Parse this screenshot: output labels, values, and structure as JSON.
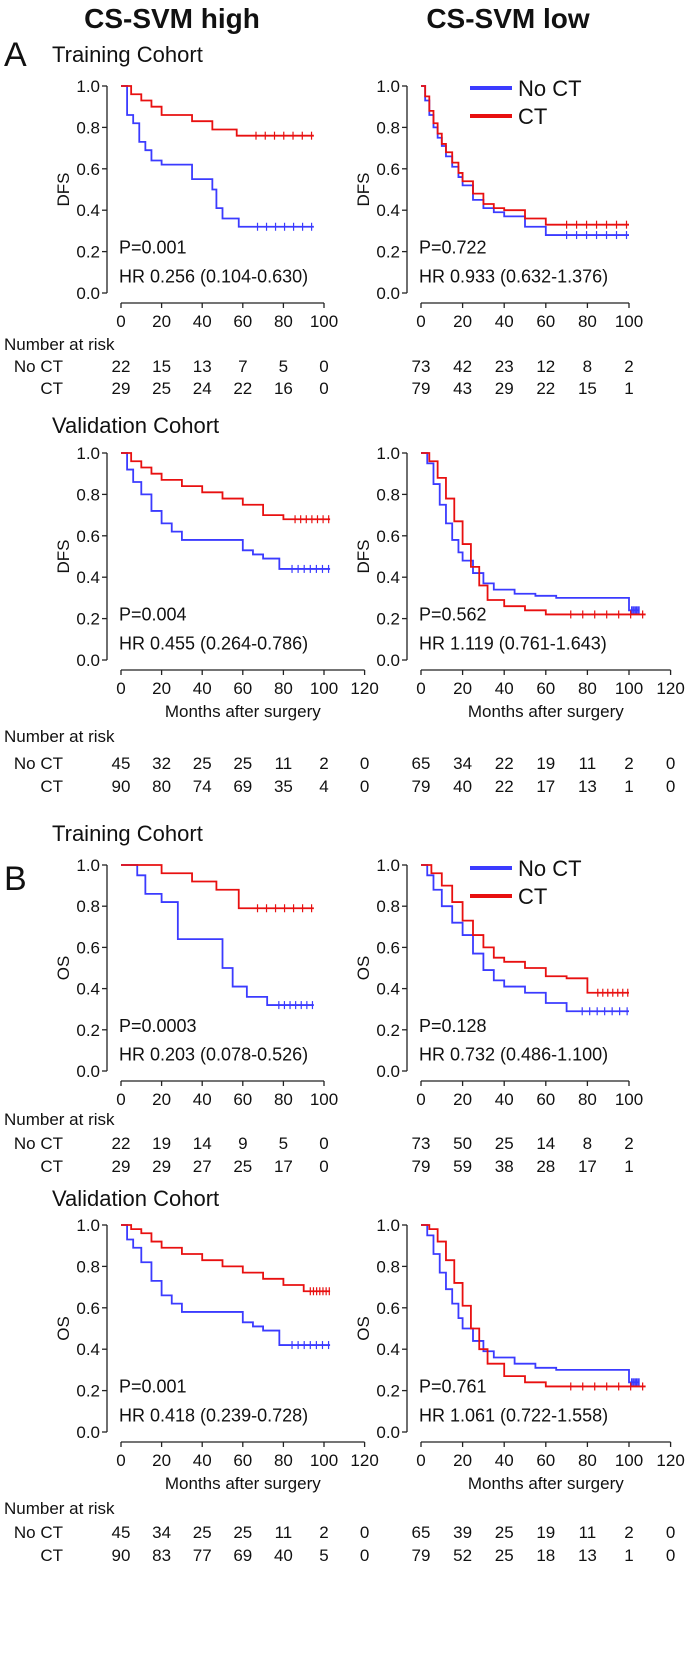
{
  "figure": {
    "headers": [
      "CS-SVM high",
      "CS-SVM low"
    ],
    "risk_header": "Number at risk",
    "legend": [
      {
        "label": "No CT",
        "color": "#3b3bff"
      },
      {
        "label": "CT",
        "color": "#e81010"
      }
    ],
    "colors": {
      "no_ct": "#3b3bff",
      "ct": "#e81010"
    }
  },
  "chart_data": [
    {
      "type": "line",
      "panel": "A",
      "cohort_title": "Training Cohort",
      "column": "CS-SVM high",
      "ylabel": "DFS",
      "xlabel": "",
      "xlim": [
        0,
        100
      ],
      "ylim": [
        0,
        1
      ],
      "xticks": [
        0,
        20,
        40,
        60,
        80,
        100
      ],
      "yticks": [
        0.0,
        0.2,
        0.4,
        0.6,
        0.8,
        1.0
      ],
      "p_value": "P=0.001",
      "hr": "HR 0.256 (0.104-0.630)",
      "series": [
        {
          "name": "No CT",
          "x": [
            0,
            3,
            6,
            9,
            12,
            15,
            20,
            35,
            45,
            47,
            50,
            58,
            95
          ],
          "y": [
            1.0,
            0.86,
            0.82,
            0.73,
            0.69,
            0.64,
            0.62,
            0.55,
            0.5,
            0.41,
            0.36,
            0.32,
            0.32
          ]
        },
        {
          "name": "CT",
          "x": [
            0,
            5,
            10,
            15,
            20,
            35,
            45,
            57,
            95
          ],
          "y": [
            1.0,
            0.96,
            0.93,
            0.9,
            0.86,
            0.83,
            0.79,
            0.76,
            0.76
          ]
        }
      ],
      "risk": {
        "times": [
          0,
          20,
          40,
          60,
          80,
          100
        ],
        "no_ct": [
          "22",
          "15",
          "13",
          "7",
          "5",
          "0"
        ],
        "ct": [
          "29",
          "25",
          "24",
          "22",
          "16",
          "0"
        ]
      }
    },
    {
      "type": "line",
      "panel": "A",
      "cohort_title": "",
      "column": "CS-SVM low",
      "ylabel": "DFS",
      "xlabel": "",
      "xlim": [
        0,
        100
      ],
      "ylim": [
        0,
        1
      ],
      "xticks": [
        0,
        20,
        40,
        60,
        80,
        100
      ],
      "yticks": [
        0.0,
        0.2,
        0.4,
        0.6,
        0.8,
        1.0
      ],
      "p_value": "P=0.722",
      "hr": "HR 0.933 (0.632-1.376)",
      "series": [
        {
          "name": "No CT",
          "x": [
            0,
            2,
            4,
            6,
            8,
            10,
            12,
            15,
            18,
            20,
            25,
            30,
            35,
            40,
            50,
            60,
            100
          ],
          "y": [
            1.0,
            0.93,
            0.86,
            0.8,
            0.75,
            0.71,
            0.66,
            0.61,
            0.56,
            0.52,
            0.45,
            0.41,
            0.39,
            0.37,
            0.32,
            0.28,
            0.28
          ]
        },
        {
          "name": "CT",
          "x": [
            0,
            2,
            4,
            6,
            8,
            10,
            12,
            15,
            18,
            20,
            25,
            30,
            35,
            40,
            50,
            60,
            100
          ],
          "y": [
            1.0,
            0.95,
            0.88,
            0.82,
            0.77,
            0.72,
            0.68,
            0.63,
            0.58,
            0.54,
            0.48,
            0.43,
            0.41,
            0.4,
            0.36,
            0.33,
            0.33
          ]
        }
      ],
      "risk": {
        "times": [
          0,
          20,
          40,
          60,
          80,
          100
        ],
        "no_ct": [
          "73",
          "42",
          "23",
          "12",
          "8",
          "2"
        ],
        "ct": [
          "79",
          "43",
          "29",
          "22",
          "15",
          "1"
        ]
      }
    },
    {
      "type": "line",
      "panel": "A",
      "cohort_title": "Validation Cohort",
      "column": "CS-SVM high",
      "ylabel": "DFS",
      "xlabel": "Months after surgery",
      "xlim": [
        0,
        120
      ],
      "ylim": [
        0,
        1
      ],
      "xticks": [
        0,
        20,
        40,
        60,
        80,
        100,
        120
      ],
      "yticks": [
        0.0,
        0.2,
        0.4,
        0.6,
        0.8,
        1.0
      ],
      "p_value": "P=0.004",
      "hr": "HR 0.455 (0.264-0.786)",
      "series": [
        {
          "name": "No CT",
          "x": [
            0,
            3,
            6,
            10,
            15,
            20,
            25,
            30,
            50,
            60,
            65,
            70,
            78,
            103
          ],
          "y": [
            1.0,
            0.92,
            0.86,
            0.8,
            0.72,
            0.66,
            0.62,
            0.58,
            0.58,
            0.53,
            0.51,
            0.49,
            0.44,
            0.44
          ]
        },
        {
          "name": "CT",
          "x": [
            0,
            5,
            10,
            15,
            20,
            30,
            40,
            50,
            60,
            70,
            80,
            103
          ],
          "y": [
            1.0,
            0.96,
            0.93,
            0.9,
            0.87,
            0.84,
            0.81,
            0.78,
            0.75,
            0.7,
            0.68,
            0.68
          ]
        }
      ],
      "risk": {
        "times": [
          0,
          20,
          40,
          60,
          80,
          100,
          120
        ],
        "no_ct": [
          "45",
          "32",
          "25",
          "25",
          "11",
          "2",
          "0"
        ],
        "ct": [
          "90",
          "80",
          "74",
          "69",
          "35",
          "4",
          "0"
        ]
      }
    },
    {
      "type": "line",
      "panel": "A",
      "cohort_title": "",
      "column": "CS-SVM low",
      "ylabel": "DFS",
      "xlabel": "Months after surgery",
      "xlim": [
        0,
        120
      ],
      "ylim": [
        0,
        1
      ],
      "xticks": [
        0,
        20,
        40,
        60,
        80,
        100,
        120
      ],
      "yticks": [
        0.0,
        0.2,
        0.4,
        0.6,
        0.8,
        1.0
      ],
      "p_value": "P=0.562",
      "hr": "HR 1.119 (0.761-1.643)",
      "series": [
        {
          "name": "No CT",
          "x": [
            0,
            3,
            6,
            9,
            12,
            15,
            18,
            20,
            25,
            30,
            35,
            45,
            55,
            65,
            95,
            100,
            105
          ],
          "y": [
            1.0,
            0.95,
            0.85,
            0.75,
            0.66,
            0.58,
            0.52,
            0.48,
            0.42,
            0.37,
            0.34,
            0.32,
            0.31,
            0.3,
            0.3,
            0.24,
            0.24
          ]
        },
        {
          "name": "CT",
          "x": [
            0,
            4,
            8,
            12,
            16,
            20,
            24,
            28,
            32,
            40,
            50,
            60,
            108
          ],
          "y": [
            1.0,
            0.96,
            0.88,
            0.78,
            0.67,
            0.56,
            0.45,
            0.36,
            0.29,
            0.26,
            0.24,
            0.22,
            0.22
          ]
        }
      ],
      "risk": {
        "times": [
          0,
          20,
          40,
          60,
          80,
          100,
          120
        ],
        "no_ct": [
          "65",
          "34",
          "22",
          "19",
          "11",
          "2",
          "0"
        ],
        "ct": [
          "79",
          "40",
          "22",
          "17",
          "13",
          "1",
          "0"
        ]
      }
    },
    {
      "type": "line",
      "panel": "B",
      "cohort_title": "Training Cohort",
      "column": "CS-SVM high",
      "ylabel": "OS",
      "xlabel": "",
      "xlim": [
        0,
        100
      ],
      "ylim": [
        0,
        1
      ],
      "xticks": [
        0,
        20,
        40,
        60,
        80,
        100
      ],
      "yticks": [
        0.0,
        0.2,
        0.4,
        0.6,
        0.8,
        1.0
      ],
      "p_value": "P=0.0003",
      "hr": "HR 0.203 (0.078-0.526)",
      "series": [
        {
          "name": "No CT",
          "x": [
            0,
            8,
            12,
            20,
            28,
            48,
            50,
            55,
            62,
            72,
            95
          ],
          "y": [
            1.0,
            0.95,
            0.86,
            0.82,
            0.64,
            0.64,
            0.5,
            0.41,
            0.36,
            0.32,
            0.32
          ]
        },
        {
          "name": "CT",
          "x": [
            0,
            20,
            35,
            47,
            58,
            95
          ],
          "y": [
            1.0,
            0.96,
            0.92,
            0.88,
            0.79,
            0.79
          ]
        }
      ],
      "risk": {
        "times": [
          0,
          20,
          40,
          60,
          80,
          100
        ],
        "no_ct": [
          "22",
          "19",
          "14",
          "9",
          "5",
          "0"
        ],
        "ct": [
          "29",
          "29",
          "27",
          "25",
          "17",
          "0"
        ]
      }
    },
    {
      "type": "line",
      "panel": "B",
      "cohort_title": "",
      "column": "CS-SVM low",
      "ylabel": "OS",
      "xlabel": "",
      "xlim": [
        0,
        100
      ],
      "ylim": [
        0,
        1
      ],
      "xticks": [
        0,
        20,
        40,
        60,
        80,
        100
      ],
      "yticks": [
        0.0,
        0.2,
        0.4,
        0.6,
        0.8,
        1.0
      ],
      "p_value": "P=0.128",
      "hr": "HR 0.732 (0.486-1.100)",
      "series": [
        {
          "name": "No CT",
          "x": [
            0,
            3,
            6,
            10,
            15,
            20,
            25,
            30,
            35,
            40,
            50,
            60,
            70,
            100
          ],
          "y": [
            1.0,
            0.95,
            0.88,
            0.8,
            0.72,
            0.66,
            0.57,
            0.49,
            0.44,
            0.41,
            0.38,
            0.33,
            0.29,
            0.29
          ]
        },
        {
          "name": "CT",
          "x": [
            0,
            5,
            10,
            15,
            20,
            25,
            30,
            35,
            40,
            50,
            60,
            70,
            80,
            100
          ],
          "y": [
            1.0,
            0.96,
            0.9,
            0.82,
            0.73,
            0.66,
            0.6,
            0.55,
            0.53,
            0.5,
            0.46,
            0.45,
            0.38,
            0.38
          ]
        }
      ],
      "risk": {
        "times": [
          0,
          20,
          40,
          60,
          80,
          100
        ],
        "no_ct": [
          "73",
          "50",
          "25",
          "14",
          "8",
          "2"
        ],
        "ct": [
          "79",
          "59",
          "38",
          "28",
          "17",
          "1"
        ]
      }
    },
    {
      "type": "line",
      "panel": "B",
      "cohort_title": "Validation Cohort",
      "column": "CS-SVM high",
      "ylabel": "OS",
      "xlabel": "Months after surgery",
      "xlim": [
        0,
        120
      ],
      "ylim": [
        0,
        1
      ],
      "xticks": [
        0,
        20,
        40,
        60,
        80,
        100,
        120
      ],
      "yticks": [
        0.0,
        0.2,
        0.4,
        0.6,
        0.8,
        1.0
      ],
      "p_value": "P=0.001",
      "hr": "HR 0.418 (0.239-0.728)",
      "series": [
        {
          "name": "No CT",
          "x": [
            0,
            3,
            6,
            10,
            15,
            20,
            25,
            30,
            50,
            60,
            65,
            70,
            78,
            103
          ],
          "y": [
            1.0,
            0.93,
            0.89,
            0.82,
            0.73,
            0.66,
            0.62,
            0.58,
            0.58,
            0.53,
            0.51,
            0.49,
            0.42,
            0.42
          ]
        },
        {
          "name": "CT",
          "x": [
            0,
            5,
            10,
            15,
            20,
            30,
            40,
            50,
            60,
            70,
            80,
            90,
            103
          ],
          "y": [
            1.0,
            0.98,
            0.96,
            0.92,
            0.89,
            0.86,
            0.83,
            0.8,
            0.77,
            0.74,
            0.71,
            0.68,
            0.68
          ]
        }
      ],
      "risk": {
        "times": [
          0,
          20,
          40,
          60,
          80,
          100,
          120
        ],
        "no_ct": [
          "45",
          "34",
          "25",
          "25",
          "11",
          "2",
          "0"
        ],
        "ct": [
          "90",
          "83",
          "77",
          "69",
          "40",
          "5",
          "0"
        ]
      }
    },
    {
      "type": "line",
      "panel": "B",
      "cohort_title": "",
      "column": "CS-SVM low",
      "ylabel": "OS",
      "xlabel": "Months after surgery",
      "xlim": [
        0,
        120
      ],
      "ylim": [
        0,
        1
      ],
      "xticks": [
        0,
        20,
        40,
        60,
        80,
        100,
        120
      ],
      "yticks": [
        0.0,
        0.2,
        0.4,
        0.6,
        0.8,
        1.0
      ],
      "p_value": "P=0.761",
      "hr": "HR 1.061 (0.722-1.558)",
      "series": [
        {
          "name": "No CT",
          "x": [
            0,
            3,
            6,
            9,
            12,
            15,
            18,
            20,
            25,
            30,
            35,
            45,
            55,
            65,
            95,
            100,
            105
          ],
          "y": [
            1.0,
            0.95,
            0.86,
            0.77,
            0.69,
            0.62,
            0.55,
            0.5,
            0.44,
            0.39,
            0.36,
            0.33,
            0.31,
            0.3,
            0.3,
            0.24,
            0.24
          ]
        },
        {
          "name": "CT",
          "x": [
            0,
            4,
            8,
            12,
            16,
            20,
            24,
            28,
            32,
            40,
            50,
            60,
            108
          ],
          "y": [
            1.0,
            0.98,
            0.92,
            0.83,
            0.72,
            0.61,
            0.5,
            0.4,
            0.33,
            0.27,
            0.24,
            0.22,
            0.22
          ]
        }
      ],
      "risk": {
        "times": [
          0,
          20,
          40,
          60,
          80,
          100,
          120
        ],
        "no_ct": [
          "65",
          "39",
          "25",
          "19",
          "11",
          "2",
          "0"
        ],
        "ct": [
          "79",
          "52",
          "25",
          "18",
          "13",
          "1",
          "0"
        ]
      }
    }
  ]
}
